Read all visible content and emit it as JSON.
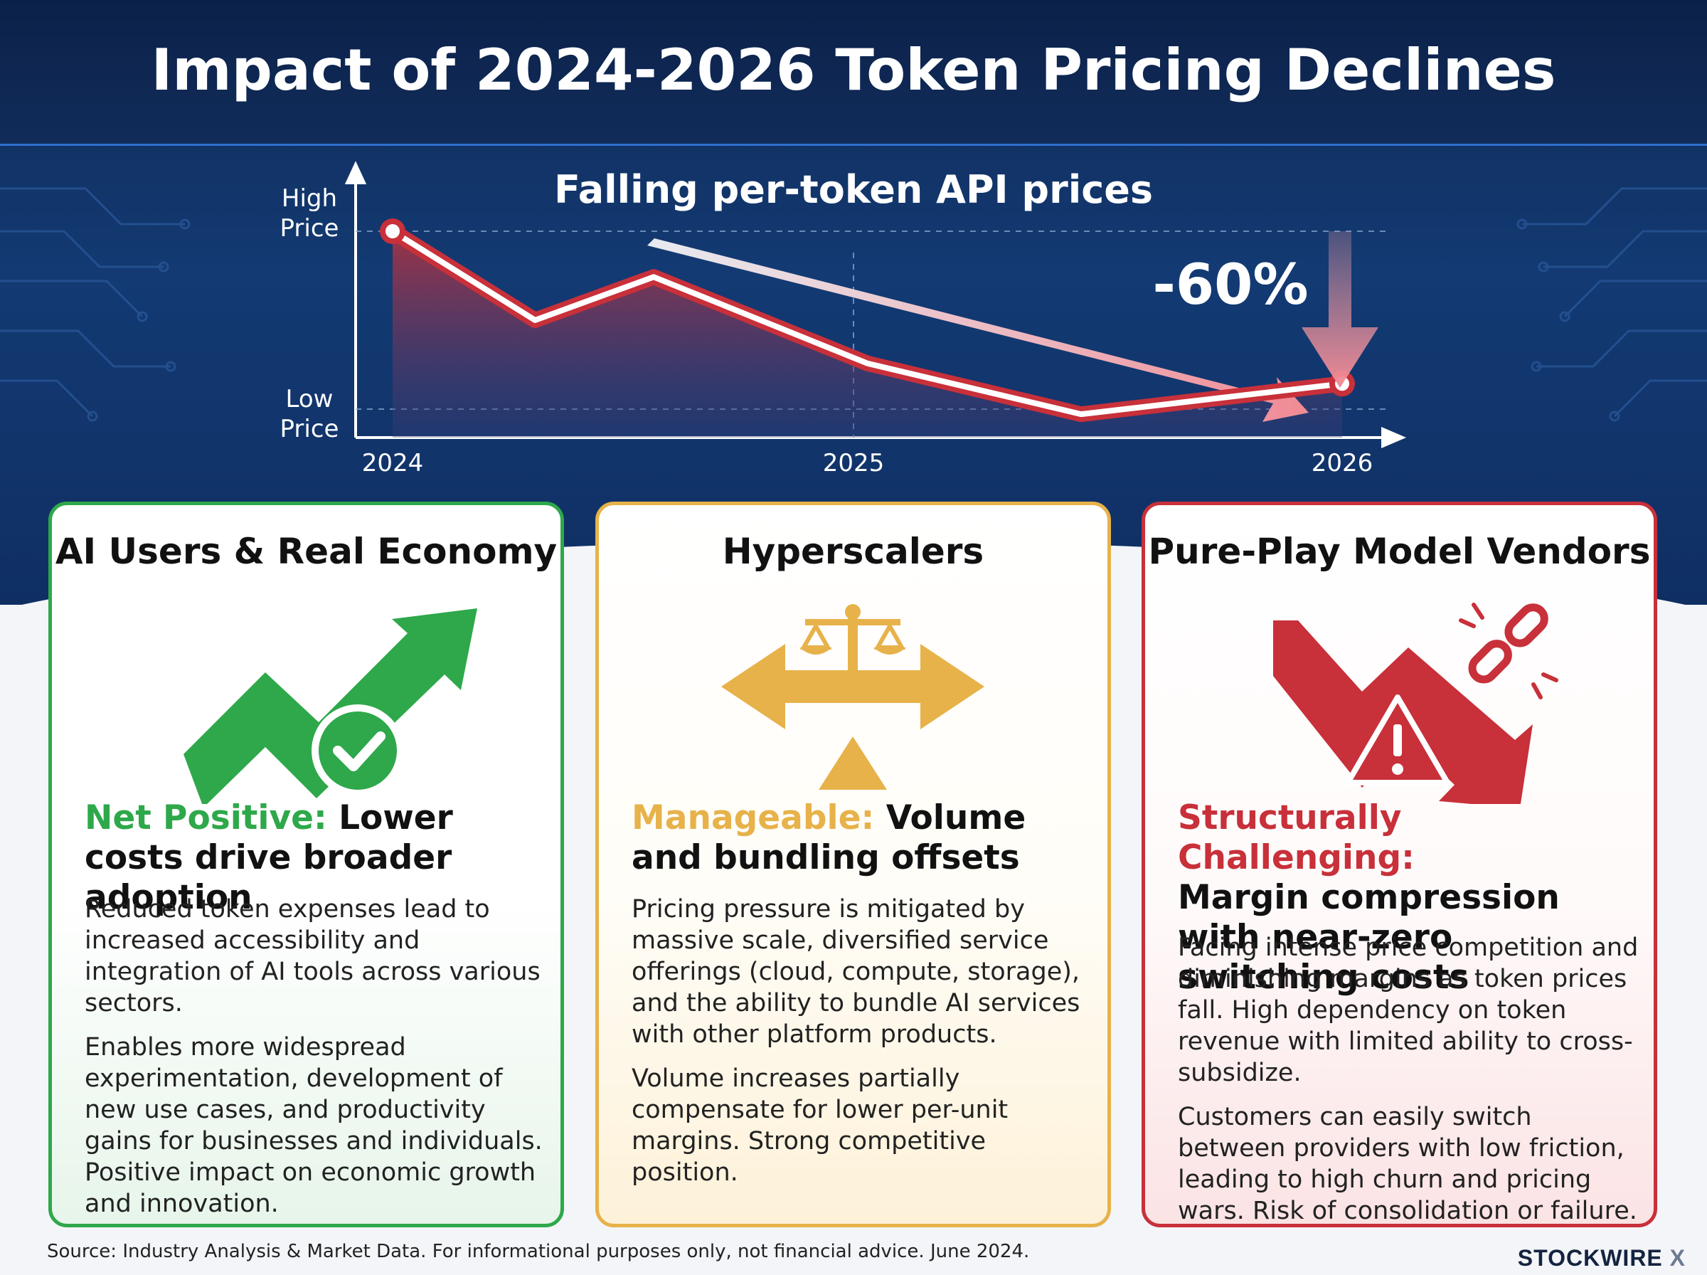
{
  "title": "Impact of 2024-2026 Token Pricing Declines",
  "chart": {
    "title": "Falling per-token API prices",
    "y_high_label": [
      "High",
      "Price"
    ],
    "y_low_label": [
      "Low",
      "Price"
    ],
    "x_labels": [
      "2024",
      "2025",
      "2026"
    ],
    "change_label": "-60%"
  },
  "chart_data": {
    "type": "line",
    "title": "Falling per-token API prices",
    "x": [
      2024.0,
      2024.3,
      2024.55,
      2025.0,
      2025.45,
      2026.0
    ],
    "series": [
      {
        "values": [
          100,
          65,
          82,
          48,
          28,
          40
        ]
      }
    ],
    "x_ticks": [
      "2024",
      "2025",
      "2026"
    ],
    "y_ticks": [
      "Low Price",
      "High Price"
    ],
    "annotation": "-60%"
  },
  "cards": [
    {
      "title": "AI Users & Real Economy",
      "verdict_label": "Net Positive:",
      "verdict_text": " Lower costs drive broader adoption",
      "paragraphs": [
        "Reduced token expenses lead to increased accessibility and integration of AI tools across various sectors.",
        "Enables more widespread experimentation, development of new use cases, and productivity gains for businesses and individuals.",
        "Positive impact on economic growth and innovation."
      ]
    },
    {
      "title": "Hyperscalers",
      "verdict_label": "Manageable:",
      "verdict_text": " Volume and bundling offsets",
      "paragraphs": [
        "Pricing pressure is mitigated by massive scale, diversified service offerings (cloud, compute, storage), and the ability to bundle AI services with other platform products.",
        "Volume increases partially compensate for lower per-unit margins. Strong competitive position."
      ]
    },
    {
      "title": "Pure-Play Model Vendors",
      "verdict_label": "Structurally Challenging:",
      "verdict_text": "Margin compression with near-zero switching costs",
      "paragraphs": [
        "Facing intense price competition and diminishing margins as token prices fall. High dependency on token revenue with limited ability to cross-subsidize.",
        "Customers can easily switch between providers with low friction, leading to high churn and pricing wars. Risk of consolidation or failure."
      ]
    }
  ],
  "footer": {
    "source": "Source: Industry Analysis & Market Data. For informational purposes only, not financial advice.  June 2024.",
    "brand": "STOCKWIRE",
    "brand_x": "X"
  },
  "colors": {
    "green": "#2ea84a",
    "yellow": "#e7b24a",
    "red": "#c8303a",
    "navy": "#112c5a"
  }
}
